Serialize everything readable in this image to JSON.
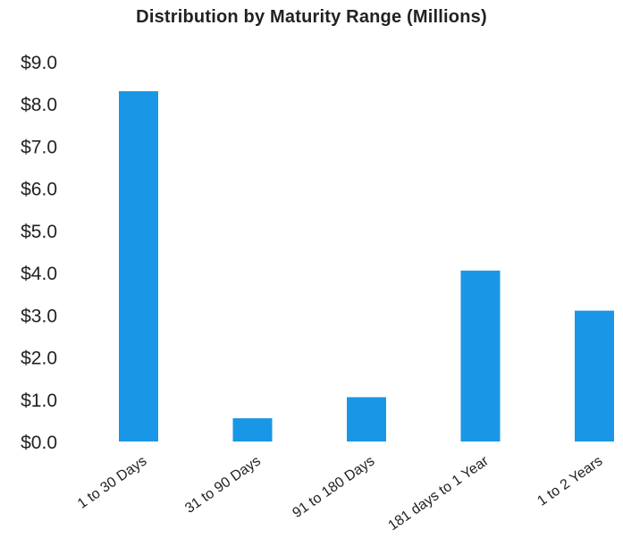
{
  "chart_data": {
    "type": "bar",
    "title": "Distribution by Maturity Range (Millions)",
    "xlabel": "",
    "ylabel": "",
    "categories": [
      "1 to 30 Days",
      "31 to 90 Days",
      "91 to 180 Days",
      "181 days to 1 Year",
      "1 to 2 Years"
    ],
    "values": [
      8.3,
      0.55,
      1.05,
      4.05,
      3.1
    ],
    "ylim": [
      0,
      9
    ],
    "yticks": [
      "$0.0",
      "$1.0",
      "$2.0",
      "$3.0",
      "$4.0",
      "$5.0",
      "$6.0",
      "$7.0",
      "$8.0",
      "$9.0"
    ],
    "grid": false,
    "legend": "none",
    "bar_color": "#1a96e6"
  }
}
